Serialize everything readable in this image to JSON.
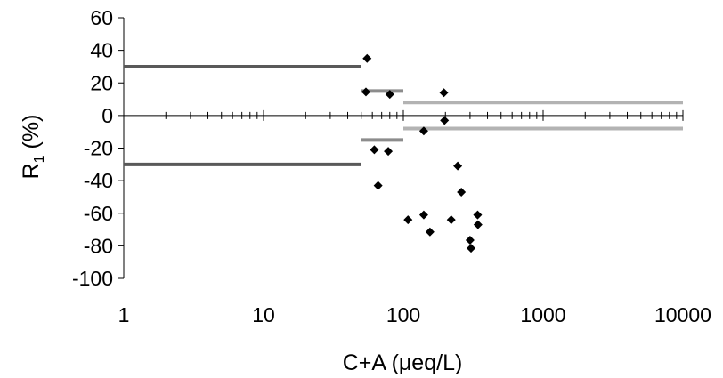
{
  "chart_data": {
    "type": "scatter",
    "xlabel": "C+A (μeq/L)",
    "ylabel": {
      "base": "R",
      "subscript": "1",
      "suffix": " (%)"
    },
    "x_scale": "log",
    "xlim": [
      1,
      10000
    ],
    "ylim": [
      -100,
      60
    ],
    "x_ticks": [
      1,
      10,
      100,
      1000,
      10000
    ],
    "x_tick_labels": [
      "1",
      "10",
      "100",
      "1000",
      "10000"
    ],
    "y_ticks": [
      -100,
      -80,
      -60,
      -40,
      -20,
      0,
      20,
      40,
      60
    ],
    "y_tick_labels": [
      "-100",
      "-80",
      "-60",
      "-40",
      "-20",
      "0",
      "20",
      "40",
      "60"
    ],
    "grid": false,
    "points": [
      [
        55,
        35
      ],
      [
        54,
        14.5
      ],
      [
        80,
        13
      ],
      [
        195,
        14
      ],
      [
        197,
        -3
      ],
      [
        140,
        -9.5
      ],
      [
        62,
        -21
      ],
      [
        78,
        -22
      ],
      [
        66,
        -43
      ],
      [
        245,
        -31
      ],
      [
        260,
        -47
      ],
      [
        108,
        -64
      ],
      [
        140,
        -61
      ],
      [
        155,
        -71.5
      ],
      [
        220,
        -64
      ],
      [
        300,
        -76.5
      ],
      [
        305,
        -81.5
      ],
      [
        340,
        -61
      ],
      [
        342,
        -67
      ]
    ],
    "reference_lines": [
      {
        "x": [
          1,
          50
        ],
        "y": 30,
        "color": "#595959"
      },
      {
        "x": [
          1,
          50
        ],
        "y": -30,
        "color": "#595959"
      },
      {
        "x": [
          50,
          100
        ],
        "y": 15,
        "color": "#8c8c8c"
      },
      {
        "x": [
          50,
          100
        ],
        "y": -15,
        "color": "#8c8c8c"
      },
      {
        "x": [
          100,
          10000
        ],
        "y": 8,
        "color": "#b3b3b3"
      },
      {
        "x": [
          100,
          10000
        ],
        "y": -8,
        "color": "#b3b3b3"
      }
    ],
    "marker_color": "#000000"
  }
}
